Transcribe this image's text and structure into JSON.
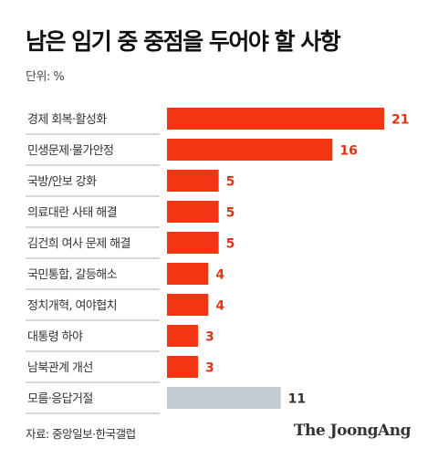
{
  "title": "남은 임기 중 중점을 두어야 할 사항",
  "unit_label": "단위: %",
  "source": "자료: 중앙일보·한국갤럽",
  "logo_text": "The JoongAng",
  "colors": {
    "highlight": "#f23513",
    "muted": "#c3cbd1",
    "value_highlight": "#e03415",
    "value_muted": "#333333",
    "category_text": "#333333",
    "separator": "#999999"
  },
  "chart_data": {
    "type": "bar",
    "orientation": "horizontal",
    "categories": [
      "경제 회복·활성화",
      "민생문제·물가안정",
      "국방/안보 강화",
      "의료대란 사태 해결",
      "김건희 여사 문제 해결",
      "국민통합, 갈등해소",
      "정치개혁, 여야협치",
      "대통령 하야",
      "남북관계 개선",
      "모름·응답거절"
    ],
    "values": [
      21,
      16,
      5,
      5,
      5,
      4,
      4,
      3,
      3,
      11
    ],
    "bar_colors": [
      "highlight",
      "highlight",
      "highlight",
      "highlight",
      "highlight",
      "highlight",
      "highlight",
      "highlight",
      "highlight",
      "muted"
    ],
    "xlim": [
      0,
      21
    ],
    "grid": false,
    "legend": "none"
  }
}
